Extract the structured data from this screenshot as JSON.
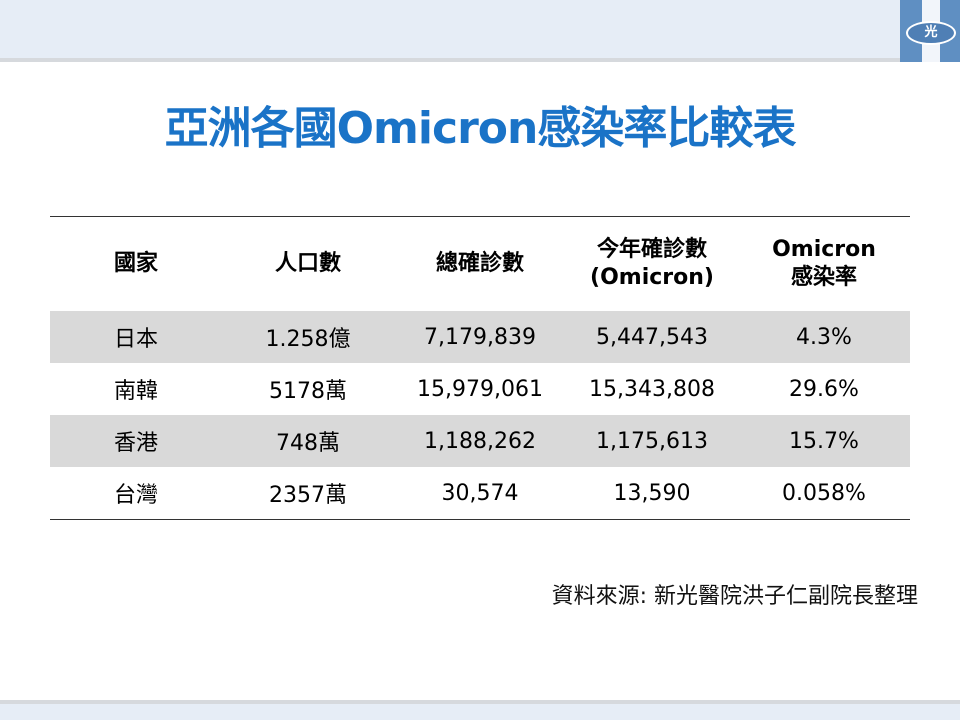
{
  "title": "亞洲各國Omicron感染率比較表",
  "logo": {
    "text": "光",
    "color": "#5f8fc2"
  },
  "accent_color": "#1a73c7",
  "table": {
    "headers": [
      "國家",
      "人口數",
      "總確診數",
      "今年確診數\n(Omicron)",
      "Omicron\n感染率"
    ],
    "rows": [
      [
        "日本",
        "1.258億",
        "7,179,839",
        "5,447,543",
        "4.3%"
      ],
      [
        "南韓",
        "5178萬",
        "15,979,061",
        "15,343,808",
        "29.6%"
      ],
      [
        "香港",
        "748萬",
        "1,188,262",
        "1,175,613",
        "15.7%"
      ],
      [
        "台灣",
        "2357萬",
        "30,574",
        "13,590",
        "0.058%"
      ]
    ]
  },
  "source": "資料來源:  新光醫院洪子仁副院長整理"
}
